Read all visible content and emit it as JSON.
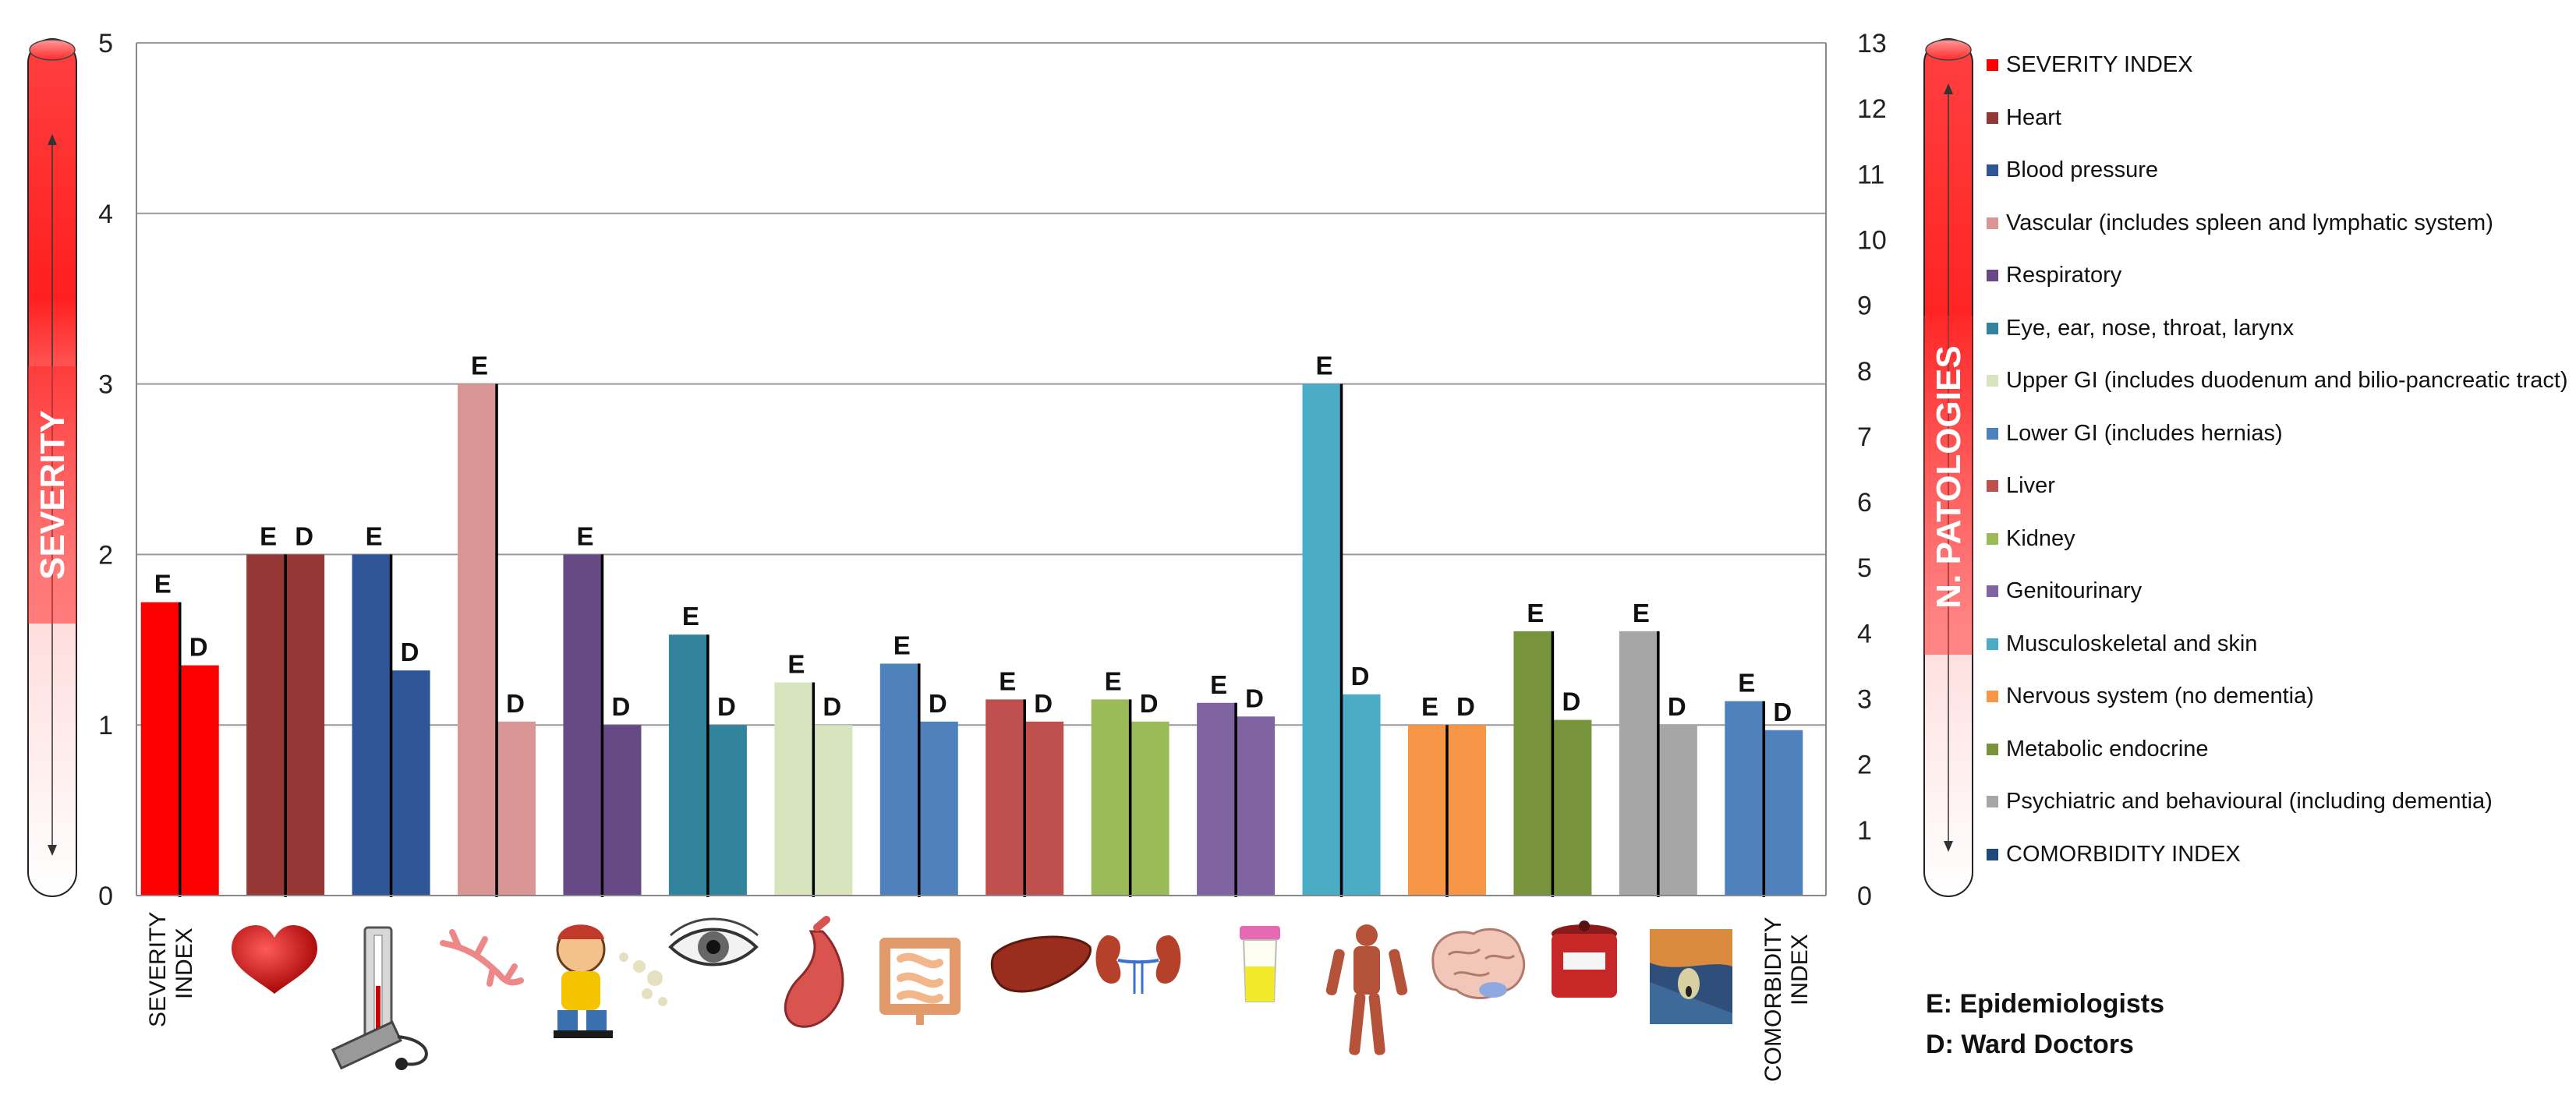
{
  "chart_data": {
    "type": "bar",
    "left_axis": {
      "title": "SEVERITY",
      "ticks": [
        "0",
        "1",
        "2",
        "3",
        "4",
        "5"
      ],
      "ylim": [
        0,
        5
      ]
    },
    "right_axis": {
      "title": "N. PATOLOGIES",
      "ticks": [
        "0",
        "1",
        "2",
        "3",
        "4",
        "5",
        "6",
        "7",
        "8",
        "9",
        "10",
        "11",
        "12",
        "13"
      ],
      "ylim": [
        0,
        13
      ]
    },
    "series": [
      {
        "name": "E",
        "values": [
          1.72,
          2.0,
          2.0,
          3.0,
          2.0,
          1.53,
          1.25,
          1.36,
          1.15,
          1.15,
          1.13,
          3.0,
          1.0,
          1.55,
          1.55,
          1.14
        ]
      },
      {
        "name": "D",
        "values": [
          1.35,
          2.0,
          1.32,
          1.02,
          1.0,
          1.0,
          1.0,
          1.02,
          1.02,
          1.02,
          1.05,
          1.18,
          1.0,
          1.03,
          1.0,
          0.97
        ]
      }
    ],
    "categories": [
      {
        "legend": "SEVERITY INDEX",
        "label_lines": [
          "SEVERITY",
          "INDEX"
        ],
        "color": "#FF0000",
        "icon": "severity-index-text"
      },
      {
        "legend": "Heart",
        "color": "#953735",
        "icon": "heart-icon"
      },
      {
        "legend": "Blood pressure",
        "color": "#2E5596",
        "icon": "blood-pressure-gauge-icon"
      },
      {
        "legend": "Vascular (includes spleen and lymphatic system)",
        "color": "#D99694",
        "icon": "blood-vessel-icon"
      },
      {
        "legend": "Respiratory",
        "color": "#674A85",
        "icon": "coughing-person-icon"
      },
      {
        "legend": "Eye, ear, nose, throat, larynx",
        "color": "#31849B",
        "icon": "eye-icon"
      },
      {
        "legend": "Upper GI (includes duodenum and bilio-pancreatic tract)",
        "color": "#D7E4BD",
        "icon": "stomach-icon"
      },
      {
        "legend": "Lower GI (includes hernias)",
        "color": "#4F81BD",
        "icon": "intestine-icon"
      },
      {
        "legend": "Liver",
        "color": "#C0504D",
        "icon": "liver-icon"
      },
      {
        "legend": "Kidney",
        "color": "#9BBB59",
        "icon": "kidney-icon"
      },
      {
        "legend": "Genitourinary",
        "color": "#8064A2",
        "icon": "urine-sample-icon"
      },
      {
        "legend": "Musculoskeletal and skin",
        "color": "#4BACC6",
        "icon": "muscle-figure-icon"
      },
      {
        "legend": "Nervous system (no dementia)",
        "color": "#F79646",
        "icon": "brain-icon"
      },
      {
        "legend": "Metabolic endocrine",
        "color": "#77933C",
        "icon": "sugar-jar-icon"
      },
      {
        "legend": "Psychiatric and behavioural (including dementia)",
        "color": "#A6A6A6",
        "icon": "scream-painting-icon"
      },
      {
        "legend": "COMORBIDITY INDEX",
        "label_lines": [
          "COMORBIDITY",
          "INDEX"
        ],
        "color": "#4F81BD",
        "swatch_color": "#1F497D",
        "icon": "comorbidity-index-text"
      }
    ],
    "grid": true,
    "legend_position": "right",
    "notes": [
      "E: Epidemiologists",
      "D: Ward Doctors"
    ]
  }
}
